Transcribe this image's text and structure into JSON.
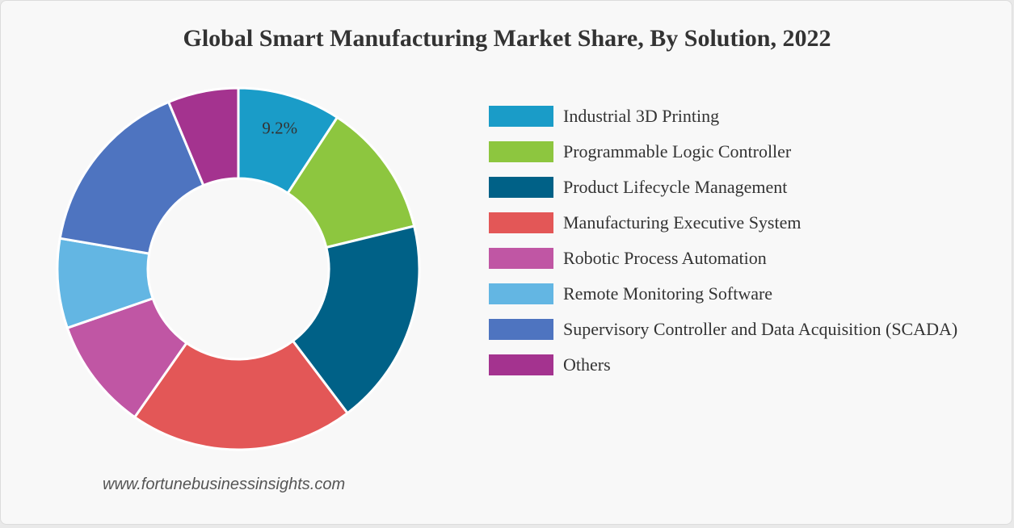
{
  "chart_data": {
    "type": "pie",
    "title": "Global Smart Manufacturing Market Share, By Solution, 2022",
    "donut": true,
    "categories": [
      "Industrial 3D Printing",
      "Programmable Logic Controller",
      "Product Lifecycle Management",
      "Manufacturing Executive System",
      "Robotic Process Automation",
      "Remote Monitoring Software",
      "Supervisory Controller and Data Acquisition (SCADA)",
      "Others"
    ],
    "values": [
      9.2,
      12.0,
      18.5,
      20.0,
      10.0,
      8.0,
      16.0,
      6.3
    ],
    "colors": [
      "#1a9cc8",
      "#8dc63f",
      "#006187",
      "#e35757",
      "#c056a4",
      "#63b6e3",
      "#4e74c0",
      "#a4338f"
    ],
    "data_labels": [
      "9.2%",
      "",
      "",
      "",
      "",
      "",
      "",
      ""
    ],
    "legend_position": "right"
  },
  "source_text": "www.fortunebusinessinsights.com"
}
